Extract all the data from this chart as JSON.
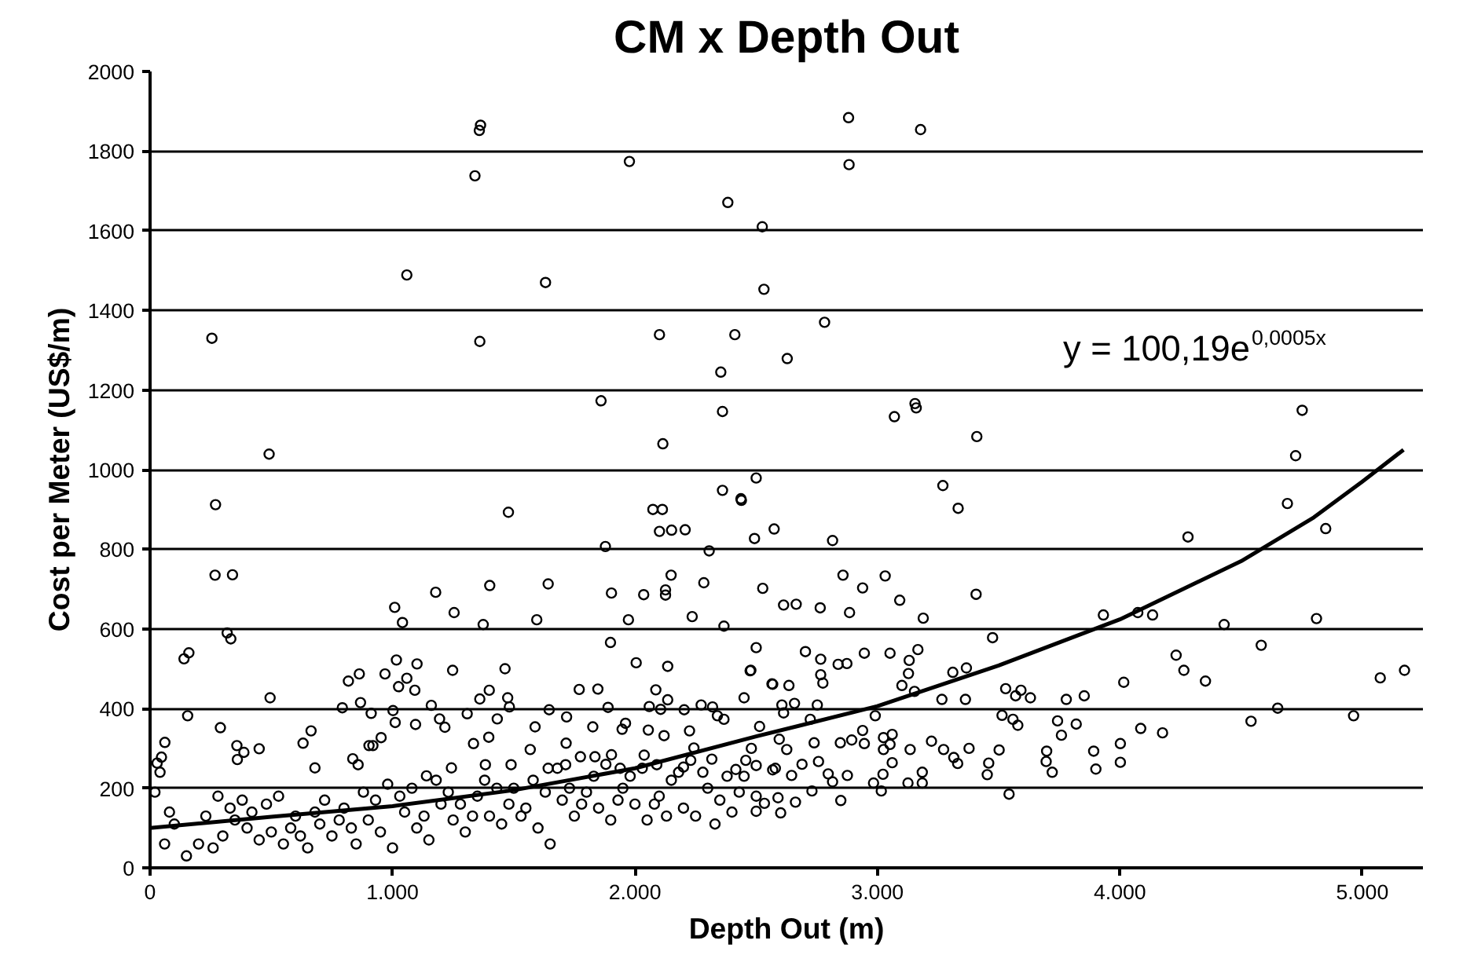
{
  "chart_data": {
    "type": "scatter",
    "title": "CM x Depth Out",
    "xlabel": "Depth Out (m)",
    "ylabel": "Cost per Meter (US$/m)",
    "xlim": [
      0,
      5250
    ],
    "ylim": [
      0,
      2000
    ],
    "xticks": [
      0,
      {
        "value": 1000,
        "label": "1.000"
      },
      {
        "value": 2000,
        "label": "2.000"
      },
      {
        "value": 3000,
        "label": "3.000"
      },
      {
        "value": 4000,
        "label": "4.000"
      },
      {
        "value": 5000,
        "label": "5.000"
      }
    ],
    "yticks": [
      0,
      200,
      400,
      600,
      800,
      1000,
      1200,
      1400,
      1600,
      1800,
      2000
    ],
    "grid": "y",
    "annotations": [
      "y = 100,19e$^{0,0005x}$"
    ],
    "series": [
      {
        "marker": "circle",
        "color": "#000000",
        "x": [
          255,
          491,
          1059,
          1340,
          1358,
          1363,
          1360,
          1631,
          1860,
          1977,
          2101,
          2115,
          2354,
          2361,
          2383,
          2412,
          2525,
          2532,
          2361,
          2437,
          2500,
          2881,
          2883,
          3178,
          2782,
          2628,
          3070,
          3155,
          3160,
          3410,
          4752,
          4725,
          3270,
          3333,
          2815,
          2574,
          2493,
          4691,
          4281,
          4849,
          2858,
          3032,
          2939,
          3407,
          3092,
          2613,
          2665,
          2764,
          2885,
          3189,
          3932,
          4074,
          4135,
          4430,
          4811,
          3475,
          4583,
          4232,
          4264,
          4353,
          4016,
          5074,
          5174,
          4541,
          4651,
          4964,
          4086,
          4176,
          4002,
          4002,
          3892,
          3901,
          3743,
          3820,
          3759,
          3698,
          3696,
          3721,
          3779,
          3853,
          3529,
          3592,
          3570,
          3631,
          3514,
          3559,
          3579,
          3502,
          3459,
          3453,
          3543,
          3266,
          3363,
          3311,
          3367,
          3223,
          3273,
          3315,
          3331,
          3378,
          3167,
          3052,
          2946,
          3131,
          2838,
          2874,
          2766,
          2703,
          2500,
          2478,
          3128,
          3101,
          3153,
          2766,
          2775,
          2568,
          2635,
          2658,
          2606,
          2613,
          2752,
          2991,
          2723,
          2939,
          3061,
          2514,
          2595,
          2739,
          2847,
          2894,
          2946,
          3025,
          3052,
          2626,
          3025,
          3135,
          3061,
          2689,
          2757,
          2500,
          2568,
          2646,
          2797,
          2876,
          2815,
          2984,
          3023,
          3016,
          3126,
          3185,
          3185,
          2730,
          2662,
          2849,
          2601,
          2500,
          2534,
          2590,
          270,
          268,
          340,
          318,
          333,
          140,
          160,
          155,
          495,
          1478,
          1009,
          1041,
          1178,
          1254,
          1401,
          1374,
          1595,
          1642,
          1878,
          1903,
          1899,
          1973,
          2036,
          2005,
          2074,
          2113,
          2101,
          2151,
          2207,
          2306,
          2126,
          2149,
          2126,
          2236,
          2284,
          2367,
          2439,
          2527,
          2135,
          2475,
          2450,
          2565,
          2086,
          2135,
          2059,
          2273,
          2320,
          1889,
          1847,
          1770,
          2340,
          2106,
          2203,
          1961,
          1826,
          1947,
          2225,
          2055,
          2120,
          2367,
          2243,
          1718,
          1646,
          1588,
          1716,
          1835,
          1903,
          2038,
          2090,
          2200,
          2317,
          2416,
          2457,
          2579,
          1475,
          1482,
          1464,
          1399,
          1360,
          1432,
          1308,
          1248,
          1101,
          1092,
          1016,
          1025,
          969,
          1059,
          863,
          818,
          868,
          793,
          1160,
          1194,
          1216,
          1334,
          1397,
          1002,
          1011,
          953,
          912,
          919,
          664,
          631,
          680,
          450,
          387,
          360,
          290,
          358,
          61,
          47,
          29,
          41,
          836,
          858,
          903,
          1095,
          1140,
          1243,
          1383,
          1489,
          1568,
          1642,
          1714,
          1775,
          1939,
          150,
          60,
          100,
          200,
          260,
          300,
          350,
          400,
          450,
          500,
          550,
          600,
          650,
          700,
          750,
          800,
          850,
          900,
          950,
          1000,
          1050,
          1100,
          1150,
          1200,
          1250,
          1300,
          1350,
          1400,
          1450,
          1500,
          1550,
          1600,
          1650,
          1700,
          1750,
          1800,
          1850,
          1900,
          1950,
          2000,
          2050,
          2100,
          2150,
          2200,
          2250,
          2300,
          2350,
          2400,
          2450,
          2500,
          20,
          80,
          230,
          280,
          330,
          380,
          420,
          480,
          530,
          580,
          620,
          680,
          720,
          780,
          830,
          880,
          930,
          980,
          1030,
          1080,
          1130,
          1180,
          1230,
          1280,
          1330,
          1380,
          1430,
          1480,
          1530,
          1580,
          1630,
          1680,
          1730,
          1780,
          1830,
          1880,
          1930,
          1980,
          2030,
          2080,
          2130,
          2180,
          2230,
          2280,
          2330,
          2380,
          2430,
          2480
        ],
        "values": [
          1330,
          1039,
          1489,
          1738,
          1852,
          1865,
          1322,
          1470,
          1173,
          1774,
          1339,
          1065,
          1245,
          1146,
          1671,
          1339,
          1610,
          1453,
          948,
          927,
          979,
          1884,
          1766,
          1854,
          1370,
          1279,
          1133,
          1166,
          1155,
          1083,
          1149,
          1035,
          960,
          903,
          822,
          851,
          827,
          915,
          831,
          852,
          735,
          733,
          703,
          687,
          672,
          660,
          662,
          653,
          641,
          627,
          635,
          641,
          635,
          611,
          626,
          578,
          559,
          534,
          496,
          469,
          466,
          477,
          496,
          368,
          401,
          382,
          350,
          339,
          312,
          265,
          293,
          248,
          369,
          361,
          333,
          293,
          267,
          240,
          423,
          432,
          450,
          446,
          432,
          427,
          383,
          373,
          358,
          296,
          263,
          234,
          185,
          423,
          423,
          491,
          502,
          318,
          297,
          277,
          262,
          300,
          548,
          539,
          539,
          521,
          511,
          513,
          524,
          543,
          553,
          496,
          488,
          458,
          443,
          485,
          464,
          461,
          458,
          413,
          409,
          389,
          409,
          382,
          373,
          345,
          335,
          355,
          323,
          314,
          314,
          321,
          312,
          327,
          310,
          297,
          297,
          297,
          264,
          260,
          267,
          257,
          246,
          232,
          236,
          232,
          216,
          213,
          235,
          193,
          213,
          240,
          213,
          193,
          165,
          169,
          138,
          142,
          162,
          176,
          912,
          735,
          736,
          590,
          575,
          525,
          540,
          382,
          427,
          893,
          654,
          616,
          692,
          641,
          709,
          611,
          623,
          713,
          807,
          690,
          566,
          623,
          686,
          515,
          900,
          900,
          845,
          848,
          849,
          796,
          698,
          735,
          685,
          631,
          716,
          607,
          923,
          702,
          506,
          495,
          427,
          462,
          447,
          422,
          405,
          409,
          404,
          403,
          449,
          448,
          382,
          398,
          397,
          363,
          354,
          348,
          344,
          346,
          332,
          373,
          301,
          379,
          397,
          354,
          313,
          279,
          284,
          283,
          259,
          253,
          273,
          247,
          270,
          250,
          427,
          404,
          500,
          446,
          424,
          374,
          387,
          496,
          512,
          446,
          522,
          455,
          487,
          476,
          487,
          469,
          415,
          402,
          408,
          374,
          353,
          312,
          328,
          395,
          365,
          327,
          388,
          307,
          344,
          313,
          251,
          299,
          290,
          272,
          352,
          307,
          315,
          278,
          263,
          240,
          274,
          259,
          307,
          360,
          231,
          251,
          259,
          259,
          297,
          250,
          259,
          279,
          250,
          30,
          60,
          110,
          60,
          50,
          80,
          120,
          100,
          70,
          90,
          60,
          130,
          50,
          110,
          80,
          150,
          60,
          120,
          90,
          50,
          140,
          100,
          70,
          160,
          120,
          90,
          180,
          130,
          110,
          200,
          150,
          100,
          60,
          170,
          130,
          190,
          150,
          120,
          200,
          160,
          120,
          180,
          220,
          150,
          130,
          200,
          170,
          140,
          230,
          180,
          190,
          140,
          130,
          180,
          150,
          170,
          140,
          160,
          180,
          100,
          80,
          140,
          170,
          120,
          100,
          190,
          170,
          210,
          180,
          200,
          130,
          220,
          190,
          160,
          130,
          220,
          200,
          160,
          130,
          220,
          190,
          250,
          200,
          160,
          230,
          260,
          170,
          230,
          250,
          160,
          130,
          240,
          270,
          240,
          110,
          230,
          190,
          300
        ]
      },
      {
        "type": "line",
        "color": "#000000",
        "x": [
          0,
          500,
          1000,
          1500,
          2000,
          2500,
          3000,
          3500,
          4000,
          4500,
          4800,
          5000,
          5170
        ],
        "values": [
          100,
          128,
          155,
          195,
          250,
          330,
          406,
          508,
          624,
          770,
          880,
          970,
          1050
        ]
      }
    ]
  }
}
